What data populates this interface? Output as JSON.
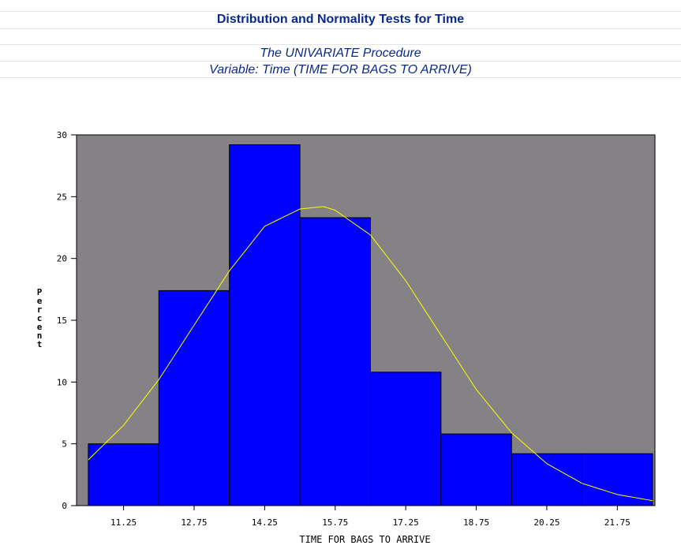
{
  "header": {
    "title": "Distribution and Normality Tests for Time",
    "procedure": "The UNIVARIATE Procedure",
    "variable": "Variable: Time (TIME FOR BAGS TO ARRIVE)"
  },
  "colors": {
    "plot_background": "#848284",
    "bar_fill": "#0000ff",
    "curve": "#ffff00",
    "header_text": "#0a2a8a"
  },
  "chart_data": {
    "type": "bar",
    "title": "",
    "xlabel": "TIME FOR BAGS TO ARRIVE",
    "ylabel": "Percent",
    "categories": [
      "11.25",
      "12.75",
      "14.25",
      "15.75",
      "17.25",
      "18.75",
      "20.25",
      "21.75"
    ],
    "values": [
      5.0,
      17.4,
      29.2,
      23.3,
      10.8,
      5.8,
      4.2,
      4.2
    ],
    "ylim": [
      0,
      30
    ],
    "yticks": [
      0,
      5,
      10,
      15,
      20,
      25,
      30
    ],
    "bin_width": 1.5,
    "grid": false,
    "normal_curve": {
      "x": [
        10.5,
        11.25,
        12.0,
        12.75,
        13.5,
        14.25,
        15.0,
        15.5,
        15.75,
        16.5,
        17.25,
        18.0,
        18.75,
        19.5,
        20.25,
        21.0,
        21.75,
        22.5
      ],
      "y": [
        3.7,
        6.5,
        10.2,
        14.6,
        19.0,
        22.6,
        24.0,
        24.2,
        23.9,
        21.9,
        18.2,
        13.8,
        9.4,
        5.9,
        3.4,
        1.8,
        0.9,
        0.4
      ]
    }
  }
}
